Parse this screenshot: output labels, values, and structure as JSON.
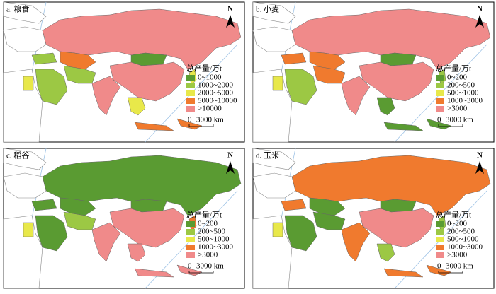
{
  "panels": [
    {
      "label": "a. 粮食",
      "legend_title": "总产量/万t",
      "north": "N",
      "scale_start": "0",
      "scale_end": "3000 km",
      "legend": [
        {
          "label": "0~1000",
          "color": "#5a9b32"
        },
        {
          "label": "1000~2000",
          "color": "#9cc844"
        },
        {
          "label": "2000~5000",
          "color": "#e8e84a"
        },
        {
          "label": "5000~10000",
          "color": "#f07a2e"
        },
        {
          "label": ">10000",
          "color": "#f08a8a"
        }
      ]
    },
    {
      "label": "b. 小麦",
      "legend_title": "总产量/万t",
      "north": "N",
      "scale_start": "0",
      "scale_end": "3000 km",
      "legend": [
        {
          "label": "0~200",
          "color": "#5a9b32"
        },
        {
          "label": "200~500",
          "color": "#9cc844"
        },
        {
          "label": "500~1000",
          "color": "#e8e84a"
        },
        {
          "label": "1000~3000",
          "color": "#f07a2e"
        },
        {
          "label": ">3000",
          "color": "#f08a8a"
        }
      ]
    },
    {
      "label": "c. 稻谷",
      "legend_title": "总产量/万t",
      "north": "N",
      "scale_start": "0",
      "scale_end": "3000 km",
      "legend": [
        {
          "label": "0~200",
          "color": "#5a9b32"
        },
        {
          "label": "200~500",
          "color": "#9cc844"
        },
        {
          "label": "500~1000",
          "color": "#e8e84a"
        },
        {
          "label": "1000~3000",
          "color": "#f07a2e"
        },
        {
          "label": ">3000",
          "color": "#f08a8a"
        }
      ]
    },
    {
      "label": "d. 玉米",
      "legend_title": "总产量/万t",
      "north": "N",
      "scale_start": "0",
      "scale_end": "3000 km",
      "legend": [
        {
          "label": "0~200",
          "color": "#5a9b32"
        },
        {
          "label": "200~500",
          "color": "#9cc844"
        },
        {
          "label": "500~1000",
          "color": "#e8e84a"
        },
        {
          "label": "1000~3000",
          "color": "#f07a2e"
        },
        {
          "label": ">3000",
          "color": "#f08a8a"
        }
      ]
    }
  ]
}
